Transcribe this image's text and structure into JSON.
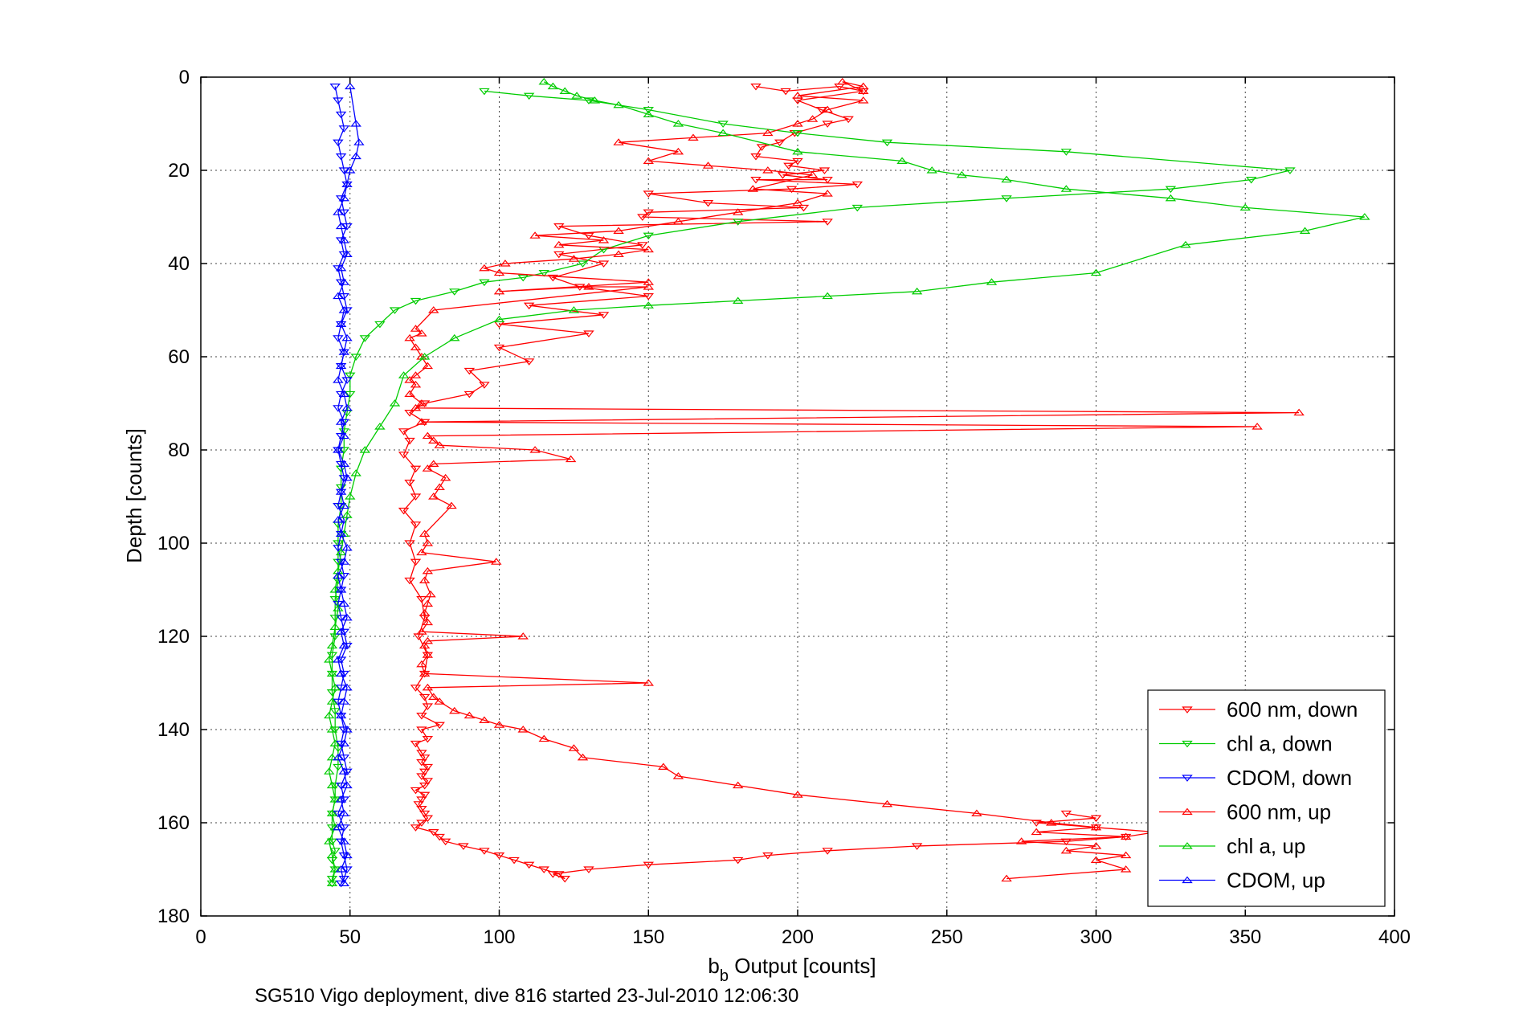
{
  "chart_data": {
    "type": "line",
    "xlabel_main": "b",
    "xlabel_sub": "b",
    "xlabel_rest": " Output [counts]",
    "ylabel": "Depth [counts]",
    "caption": "SG510 Vigo deployment, dive 816 started 23-Jul-2010 12:06:30",
    "xlim": [
      0,
      400
    ],
    "ylim": [
      0,
      180
    ],
    "y_reversed": true,
    "grid": true,
    "legend_position": "bottom-right",
    "x_ticks": [
      "0",
      "50",
      "100",
      "150",
      "200",
      "250",
      "300",
      "350",
      "400"
    ],
    "y_ticks": [
      "0",
      "20",
      "40",
      "60",
      "80",
      "100",
      "120",
      "140",
      "160",
      "180"
    ],
    "colors": {
      "red": "#ff0000",
      "green": "#00cc00",
      "blue": "#0000ff"
    },
    "series": [
      {
        "name": "600 nm, down",
        "color": "#ff0000",
        "marker": "triangle-down",
        "x": [
          186,
          196,
          214,
          222,
          200,
          208,
          217,
          210,
          199,
          194,
          188,
          186,
          200,
          197,
          209,
          195,
          210,
          186,
          220,
          198,
          150,
          170,
          202,
          150,
          148,
          210,
          120,
          130,
          148,
          120,
          135,
          118,
          127,
          150,
          110,
          135,
          100,
          130,
          100,
          110,
          90,
          95,
          90,
          75,
          70,
          75,
          68,
          70,
          68,
          72,
          70,
          72,
          68,
          72,
          70,
          72,
          70,
          74,
          75,
          73,
          76,
          75,
          72,
          75,
          76,
          74,
          80,
          74,
          76,
          72,
          74,
          75,
          74,
          76,
          75,
          74,
          76,
          75,
          72,
          75,
          74,
          73,
          74,
          75,
          76,
          74,
          72,
          78,
          80,
          82,
          88,
          95,
          100,
          105,
          110,
          115,
          120,
          122,
          118,
          130,
          150,
          180,
          190,
          210,
          240,
          290,
          310,
          320,
          300,
          280,
          300,
          290
        ],
        "y": [
          2,
          3,
          2,
          3,
          5,
          7,
          9,
          10,
          12,
          14,
          15,
          17,
          18,
          19,
          20,
          21,
          22,
          22,
          23,
          24,
          25,
          27,
          28,
          29,
          30,
          31,
          32,
          34,
          36,
          38,
          40,
          43,
          45,
          47,
          49,
          51,
          53,
          55,
          58,
          61,
          63,
          66,
          68,
          70,
          72,
          74,
          76,
          78,
          81,
          84,
          87,
          90,
          93,
          96,
          100,
          104,
          108,
          112,
          116,
          120,
          124,
          128,
          131,
          133,
          135,
          137,
          139,
          140,
          142,
          143,
          145,
          146,
          147,
          148,
          149,
          150,
          151,
          152,
          153,
          154,
          155,
          156,
          157,
          158,
          159,
          160,
          161,
          162,
          163,
          164,
          165,
          166,
          167,
          168,
          169,
          170,
          171,
          172,
          171,
          170,
          169,
          168,
          167,
          166,
          165,
          164,
          163,
          162,
          161,
          160,
          159,
          158
        ]
      },
      {
        "name": "chl a, down",
        "color": "#00cc00",
        "marker": "triangle-down",
        "x": [
          95,
          110,
          130,
          150,
          175,
          200,
          230,
          290,
          365,
          352,
          325,
          270,
          220,
          180,
          150,
          135,
          128,
          115,
          108,
          95,
          85,
          72,
          65,
          60,
          55,
          52,
          50,
          50,
          49,
          48,
          48,
          47,
          47,
          47,
          46,
          46,
          46,
          46,
          45,
          45,
          45,
          44,
          44,
          44,
          45,
          45,
          46,
          46,
          45,
          45,
          44,
          44,
          44,
          45,
          44,
          45,
          44,
          44
        ],
        "y": [
          3,
          4,
          5,
          7,
          10,
          12,
          14,
          16,
          20,
          22,
          24,
          26,
          28,
          31,
          34,
          37,
          40,
          42,
          43,
          44,
          46,
          48,
          50,
          53,
          56,
          60,
          64,
          68,
          72,
          76,
          80,
          84,
          88,
          92,
          96,
          100,
          104,
          108,
          112,
          116,
          120,
          124,
          128,
          132,
          136,
          140,
          144,
          148,
          152,
          155,
          158,
          161,
          164,
          166,
          168,
          170,
          172,
          173
        ]
      },
      {
        "name": "CDOM, down",
        "color": "#0000ff",
        "marker": "triangle-down",
        "x": [
          45,
          46,
          47,
          48,
          46,
          47,
          48,
          49,
          47,
          48,
          49,
          47,
          48,
          46,
          47,
          48,
          49,
          47,
          46,
          48,
          47,
          49,
          47,
          46,
          48,
          47,
          46,
          47,
          48,
          47,
          46,
          48,
          47,
          46,
          47,
          48,
          47,
          46,
          47,
          48,
          49,
          47,
          48,
          47,
          46,
          47,
          48,
          47,
          48,
          49,
          47,
          48,
          46,
          48,
          47,
          48,
          49,
          48,
          47
        ],
        "y": [
          2,
          5,
          8,
          11,
          14,
          17,
          20,
          23,
          26,
          29,
          32,
          35,
          38,
          41,
          44,
          47,
          50,
          53,
          56,
          59,
          62,
          65,
          68,
          71,
          74,
          77,
          80,
          83,
          86,
          89,
          92,
          95,
          98,
          101,
          104,
          107,
          110,
          113,
          116,
          119,
          122,
          125,
          128,
          131,
          134,
          137,
          140,
          143,
          146,
          149,
          152,
          155,
          158,
          161,
          164,
          167,
          170,
          172,
          173
        ]
      },
      {
        "name": "600 nm, up",
        "color": "#ff0000",
        "marker": "triangle-up",
        "x": [
          270,
          310,
          300,
          310,
          290,
          300,
          275,
          310,
          280,
          300,
          285,
          260,
          230,
          200,
          180,
          160,
          155,
          128,
          125,
          115,
          108,
          100,
          95,
          90,
          85,
          80,
          78,
          76,
          150,
          75,
          74,
          76,
          75,
          76,
          108,
          74,
          76,
          75,
          76,
          77,
          75,
          76,
          99,
          74,
          76,
          75,
          84,
          78,
          80,
          82,
          76,
          78,
          124,
          112,
          80,
          78,
          76,
          354,
          74,
          368,
          72,
          74,
          70,
          72,
          70,
          72,
          76,
          74,
          72,
          70,
          74,
          72,
          78,
          150,
          130,
          100,
          150,
          100,
          95,
          102,
          125,
          140,
          150,
          120,
          135,
          112,
          140,
          160,
          180,
          200,
          210,
          185,
          205,
          190,
          170,
          150,
          160,
          140,
          165,
          190,
          200,
          205,
          210,
          222,
          200,
          222,
          215,
          222
        ],
        "y": [
          172,
          170,
          168,
          167,
          166,
          165,
          164,
          163,
          162,
          161,
          160,
          158,
          156,
          154,
          152,
          150,
          148,
          146,
          144,
          142,
          140,
          139,
          138,
          137,
          136,
          134,
          133,
          131,
          130,
          128,
          126,
          124,
          122,
          121,
          120,
          119,
          117,
          115,
          113,
          111,
          108,
          106,
          104,
          102,
          100,
          98,
          92,
          90,
          88,
          86,
          84,
          83,
          82,
          80,
          79,
          78,
          77,
          75,
          74,
          72,
          71,
          70,
          68,
          66,
          65,
          64,
          62,
          60,
          58,
          56,
          55,
          54,
          50,
          45,
          45,
          46,
          44,
          42,
          41,
          40,
          39,
          38,
          37,
          36,
          35,
          34,
          33,
          31,
          29,
          27,
          25,
          24,
          21,
          20,
          19,
          18,
          16,
          14,
          13,
          12,
          10,
          9,
          7,
          5,
          4,
          2,
          1,
          3
        ]
      },
      {
        "name": "chl a, up",
        "color": "#00cc00",
        "marker": "triangle-up",
        "x": [
          44,
          45,
          44,
          43,
          45,
          44,
          45,
          44,
          43,
          44,
          45,
          44,
          43,
          44,
          45,
          44,
          43,
          44,
          45,
          46,
          45,
          46,
          47,
          48,
          49,
          50,
          52,
          55,
          60,
          65,
          68,
          75,
          85,
          100,
          125,
          150,
          180,
          210,
          240,
          265,
          300,
          330,
          370,
          390,
          350,
          325,
          290,
          270,
          255,
          245,
          235,
          200,
          175,
          160,
          150,
          140,
          132,
          126,
          122,
          118,
          115
        ],
        "y": [
          173,
          170,
          167,
          164,
          161,
          158,
          155,
          152,
          149,
          146,
          143,
          140,
          137,
          134,
          131,
          128,
          125,
          122,
          118,
          114,
          110,
          106,
          102,
          98,
          94,
          90,
          85,
          80,
          75,
          70,
          64,
          60,
          56,
          52,
          50,
          49,
          48,
          47,
          46,
          44,
          42,
          36,
          33,
          30,
          28,
          26,
          24,
          22,
          21,
          20,
          18,
          16,
          12,
          10,
          8,
          6,
          5,
          4,
          3,
          2,
          1
        ]
      },
      {
        "name": "CDOM, up",
        "color": "#0000ff",
        "marker": "triangle-up",
        "x": [
          48,
          47,
          49,
          48,
          46,
          48,
          47,
          49,
          48,
          46,
          48,
          49,
          47,
          48,
          49,
          47,
          46,
          48,
          47,
          49,
          48,
          47,
          46,
          48,
          49,
          47,
          46,
          48,
          47,
          49,
          48,
          46,
          48,
          47,
          49,
          48,
          46,
          47,
          48,
          49,
          47,
          48,
          46,
          48,
          47,
          49,
          48,
          47,
          46,
          48,
          49,
          50,
          52,
          53,
          52,
          50
        ],
        "y": [
          173,
          170,
          167,
          164,
          161,
          158,
          155,
          152,
          149,
          146,
          143,
          140,
          137,
          134,
          131,
          128,
          125,
          122,
          119,
          116,
          113,
          110,
          107,
          104,
          101,
          98,
          95,
          92,
          89,
          86,
          83,
          80,
          77,
          74,
          71,
          68,
          65,
          62,
          59,
          56,
          53,
          50,
          47,
          44,
          41,
          38,
          35,
          32,
          29,
          26,
          23,
          20,
          17,
          14,
          10,
          2
        ]
      }
    ]
  }
}
